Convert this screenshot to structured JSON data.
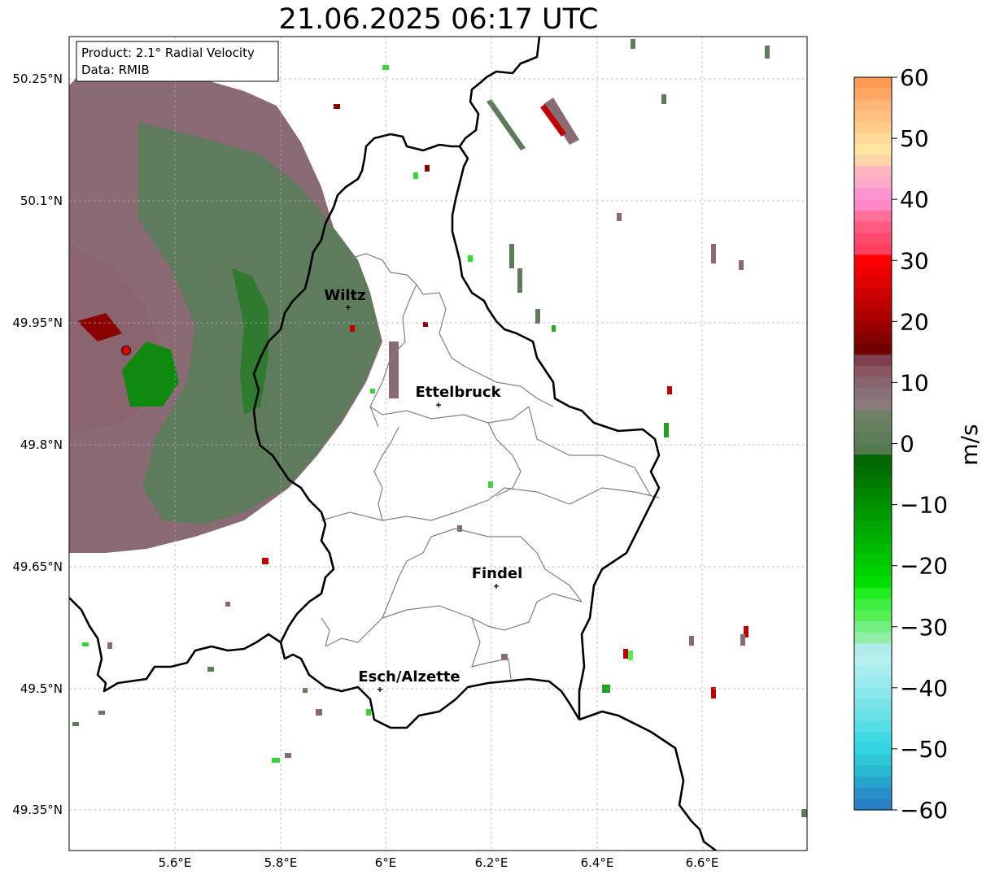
{
  "title": "21.06.2025 06:17 UTC",
  "info_box": {
    "product": "Product: 2.1° Radial Velocity",
    "data": "Data: RMIB"
  },
  "lat_labels": [
    "50.25°N",
    "50.1°N",
    "49.95°N",
    "49.8°N",
    "49.65°N",
    "49.5°N",
    "49.35°N"
  ],
  "lon_labels": [
    "5.6°E",
    "5.8°E",
    "6°E",
    "6.2°E",
    "6.4°E",
    "6.6°E"
  ],
  "cities": [
    {
      "name": "Wiltz"
    },
    {
      "name": "Ettelbruck"
    },
    {
      "name": "Findel"
    },
    {
      "name": "Esch/Alzette"
    }
  ],
  "colorbar": {
    "unit_label": "m/s",
    "ticks": [
      "60",
      "50",
      "40",
      "30",
      "20",
      "10",
      "0",
      "−10",
      "−20",
      "−30",
      "−40",
      "−50",
      "−60"
    ],
    "range": [
      -60,
      60
    ]
  },
  "colors": {
    "radar_marker": "#e00000",
    "border_country": "#000000",
    "border_canton": "#808080",
    "positive_velocity": "#8a6a74",
    "negative_velocity": "#5c7c5c"
  }
}
